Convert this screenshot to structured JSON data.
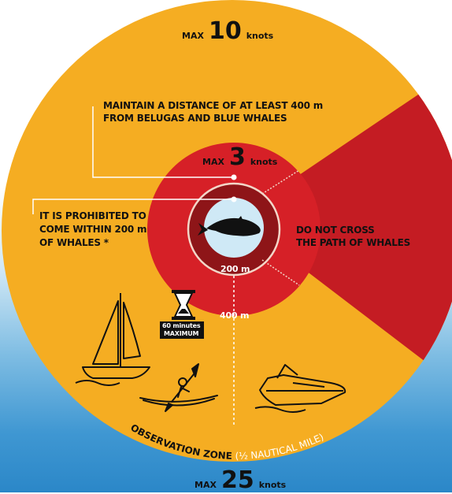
{
  "speeds": {
    "outer": {
      "max": "MAX",
      "value": "10",
      "unit": "knots"
    },
    "inner": {
      "max": "MAX",
      "value": "3",
      "unit": "knots"
    },
    "bottom": {
      "max": "MAX",
      "value": "25",
      "unit": "knots"
    }
  },
  "labels": {
    "distance_400_line1": "MAINTAIN A DISTANCE OF AT LEAST 400 m",
    "distance_400_line2": "FROM BELUGAS AND BLUE WHALES",
    "prohibited_line1": "IT IS PROHIBITED TO",
    "prohibited_line2": "COME WITHIN 200 m",
    "prohibited_line3": "OF WHALES *",
    "do_not_cross_line1": "DO NOT CROSS",
    "do_not_cross_line2": "THE PATH OF WHALES",
    "ring_200": "200 m",
    "ring_400": "400 m",
    "timer_line1": "60 minutes",
    "timer_line2": "MAXIMUM",
    "observation_zone": "OBSERVATION ZONE",
    "observation_zone_note": "(½ NAUTICAL MILE)"
  },
  "colors": {
    "observation_zone": "#f5ad22",
    "restricted_zone": "#d62027",
    "path_wedge": "#c41c23",
    "inner_core": "#8e1518",
    "water_center": "#cfe9f6",
    "ink": "#111111"
  },
  "icons": [
    "whale-icon",
    "sailboat-icon",
    "kayak-icon",
    "motorboat-icon",
    "hourglass-icon"
  ]
}
